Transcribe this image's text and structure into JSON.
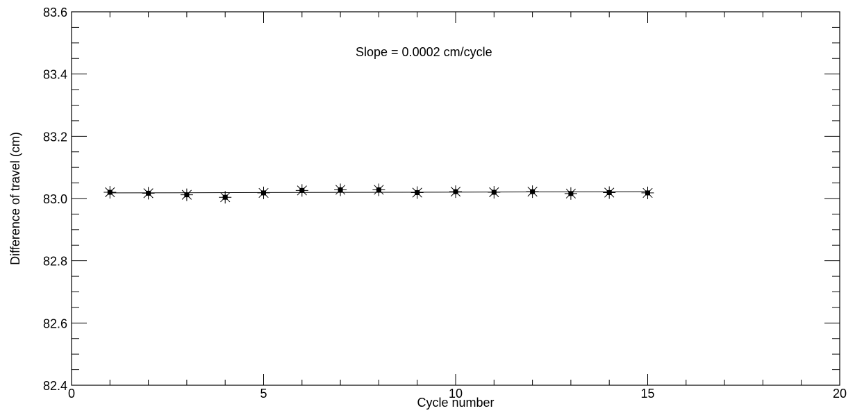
{
  "chart_data": {
    "type": "scatter",
    "xlabel": "Cycle number",
    "ylabel": "Difference of travel  (cm)",
    "xlim": [
      0,
      20
    ],
    "ylim": [
      82.4,
      83.6
    ],
    "x_ticks": [
      0,
      5,
      10,
      15,
      20
    ],
    "x_tick_labels": [
      "0",
      "5",
      "10",
      "15",
      "20"
    ],
    "y_ticks": [
      82.4,
      82.6,
      82.8,
      83.0,
      83.2,
      83.4,
      83.6
    ],
    "y_tick_labels": [
      "82.4",
      "82.6",
      "82.8",
      "83.0",
      "83.2",
      "83.4",
      "83.6"
    ],
    "annotation": "Slope =  0.0002 cm/cycle",
    "grid": false,
    "series": [
      {
        "x": [
          1,
          2,
          3,
          4,
          5,
          6,
          7,
          8,
          9,
          10,
          11,
          12,
          13,
          14,
          15
        ],
        "y": [
          83.02,
          83.017,
          83.012,
          83.004,
          83.018,
          83.026,
          83.028,
          83.028,
          83.019,
          83.022,
          83.02,
          83.022,
          83.016,
          83.019,
          83.018
        ],
        "marker": "filled-square-with-asterisk",
        "color": "#000000"
      }
    ],
    "fit_line": {
      "x": [
        1,
        15
      ],
      "y": [
        83.018,
        83.022
      ]
    }
  }
}
